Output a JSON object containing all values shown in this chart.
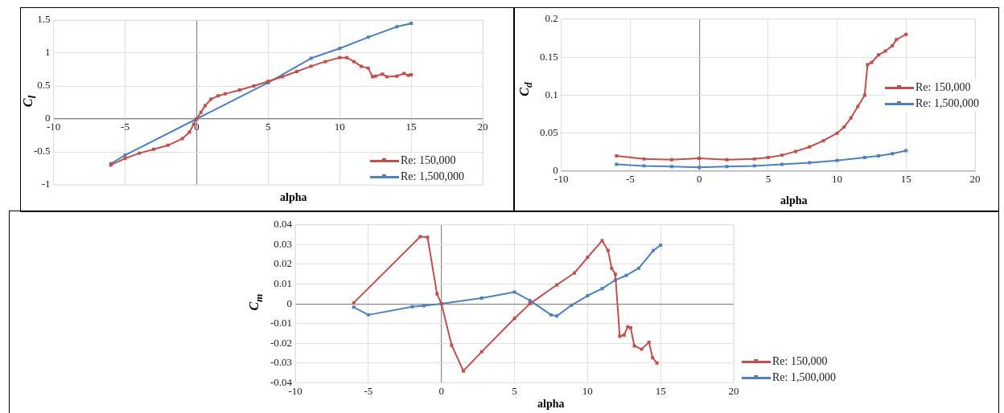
{
  "chart_data": [
    {
      "type": "line",
      "xlabel": "alpha",
      "ylabel": "C$_{l}$",
      "xlim": [
        -10,
        20
      ],
      "xticks": [
        -10,
        -5,
        0,
        5,
        10,
        15,
        20
      ],
      "ylim": [
        -1,
        1.5
      ],
      "yticks": [
        -1,
        -0.5,
        0,
        0.5,
        1,
        1.5
      ],
      "grid": true,
      "legend": "bottom right",
      "marker": "square",
      "line_style": "solid",
      "series": [
        {
          "name": "Re: 150,000",
          "color": "#c0504d",
          "x": [
            -6,
            -5,
            -4,
            -3,
            -2,
            -1,
            -0.5,
            -0.2,
            0,
            0.3,
            0.6,
            1,
            1.5,
            2,
            3,
            4,
            5,
            6,
            7,
            8,
            9,
            10,
            10.5,
            11,
            11.5,
            12,
            12.3,
            12.5,
            13,
            13.3,
            14,
            14.5,
            14.8,
            15
          ],
          "values": [
            -0.7,
            -0.6,
            -0.52,
            -0.46,
            -0.4,
            -0.3,
            -0.2,
            -0.08,
            0,
            0.1,
            0.2,
            0.3,
            0.35,
            0.38,
            0.44,
            0.5,
            0.57,
            0.64,
            0.72,
            0.8,
            0.87,
            0.93,
            0.93,
            0.87,
            0.8,
            0.77,
            0.64,
            0.65,
            0.68,
            0.64,
            0.65,
            0.69,
            0.66,
            0.67
          ]
        },
        {
          "name": "Re: 1,500,000",
          "color": "#4f81bd",
          "x": [
            -6,
            -5,
            0,
            5,
            8,
            10,
            12,
            14,
            15
          ],
          "values": [
            -0.68,
            -0.55,
            0,
            0.55,
            0.92,
            1.07,
            1.24,
            1.4,
            1.45
          ]
        }
      ]
    },
    {
      "type": "line",
      "xlabel": "alpha",
      "ylabel": "C$_{d}$",
      "xlim": [
        -10,
        20
      ],
      "xticks": [
        -10,
        -5,
        0,
        5,
        10,
        15,
        20
      ],
      "ylim": [
        0,
        0.2
      ],
      "yticks": [
        0,
        0.05,
        0.1,
        0.15,
        0.2
      ],
      "grid": true,
      "legend": "right",
      "marker": "square",
      "line_style": "solid",
      "series": [
        {
          "name": "Re: 150,000",
          "color": "#c0504d",
          "x": [
            -6,
            -4,
            -2,
            0,
            2,
            4,
            5,
            6,
            7,
            8,
            9,
            10,
            10.5,
            11,
            11.5,
            12,
            12.2,
            12.5,
            13,
            13.5,
            14,
            14.3,
            15
          ],
          "values": [
            0.02,
            0.016,
            0.015,
            0.017,
            0.015,
            0.016,
            0.018,
            0.021,
            0.026,
            0.032,
            0.04,
            0.05,
            0.058,
            0.07,
            0.085,
            0.1,
            0.14,
            0.143,
            0.153,
            0.158,
            0.165,
            0.173,
            0.18
          ]
        },
        {
          "name": "Re: 1,500,000",
          "color": "#4f81bd",
          "x": [
            -6,
            -4,
            -2,
            0,
            2,
            4,
            6,
            8,
            10,
            12,
            13,
            14,
            15
          ],
          "values": [
            0.009,
            0.007,
            0.006,
            0.005,
            0.006,
            0.007,
            0.009,
            0.011,
            0.014,
            0.018,
            0.02,
            0.023,
            0.027
          ]
        }
      ]
    },
    {
      "type": "line",
      "xlabel": "alpha",
      "ylabel": "C$_{m}$",
      "xlim": [
        -10,
        20
      ],
      "xticks": [
        -10,
        -5,
        0,
        5,
        10,
        15,
        20
      ],
      "ylim": [
        -0.04,
        0.04
      ],
      "yticks": [
        -0.04,
        -0.03,
        -0.02,
        -0.01,
        0,
        0.01,
        0.02,
        0.03,
        0.04
      ],
      "grid": true,
      "legend": "bottom right",
      "marker": "square",
      "line_style": "solid",
      "series": [
        {
          "name": "Re: 150,000",
          "color": "#c0504d",
          "x": [
            -6,
            -1.45,
            -0.95,
            -0.3,
            0,
            0.7,
            1.5,
            2.75,
            5,
            6.05,
            7.9,
            9.1,
            10,
            11,
            11.4,
            11.65,
            11.9,
            12.2,
            12.5,
            12.75,
            12.95,
            13.2,
            13.7,
            14.2,
            14.45,
            14.75
          ],
          "values": [
            0.0005,
            0.034,
            0.0337,
            0.005,
            0,
            -0.021,
            -0.034,
            -0.0243,
            -0.0074,
            0,
            0.0096,
            0.0156,
            0.0235,
            0.032,
            0.027,
            0.018,
            0.015,
            -0.0164,
            -0.0158,
            -0.0116,
            -0.0122,
            -0.0213,
            -0.023,
            -0.0195,
            -0.0273,
            -0.03
          ]
        },
        {
          "name": "Re: 1,500,000",
          "color": "#4f81bd",
          "x": [
            -6,
            -5,
            -2,
            -1.2,
            0,
            2.75,
            5,
            6.05,
            7.5,
            7.9,
            8.9,
            10,
            11,
            11.9,
            12.65,
            13.5,
            14.5,
            15
          ],
          "values": [
            -0.0017,
            -0.0056,
            -0.0015,
            -0.001,
            0,
            0.0029,
            0.0059,
            0.0017,
            -0.0056,
            -0.0062,
            -0.0007,
            0.0041,
            0.0077,
            0.012,
            0.0144,
            0.018,
            0.027,
            0.0297
          ]
        }
      ]
    }
  ]
}
